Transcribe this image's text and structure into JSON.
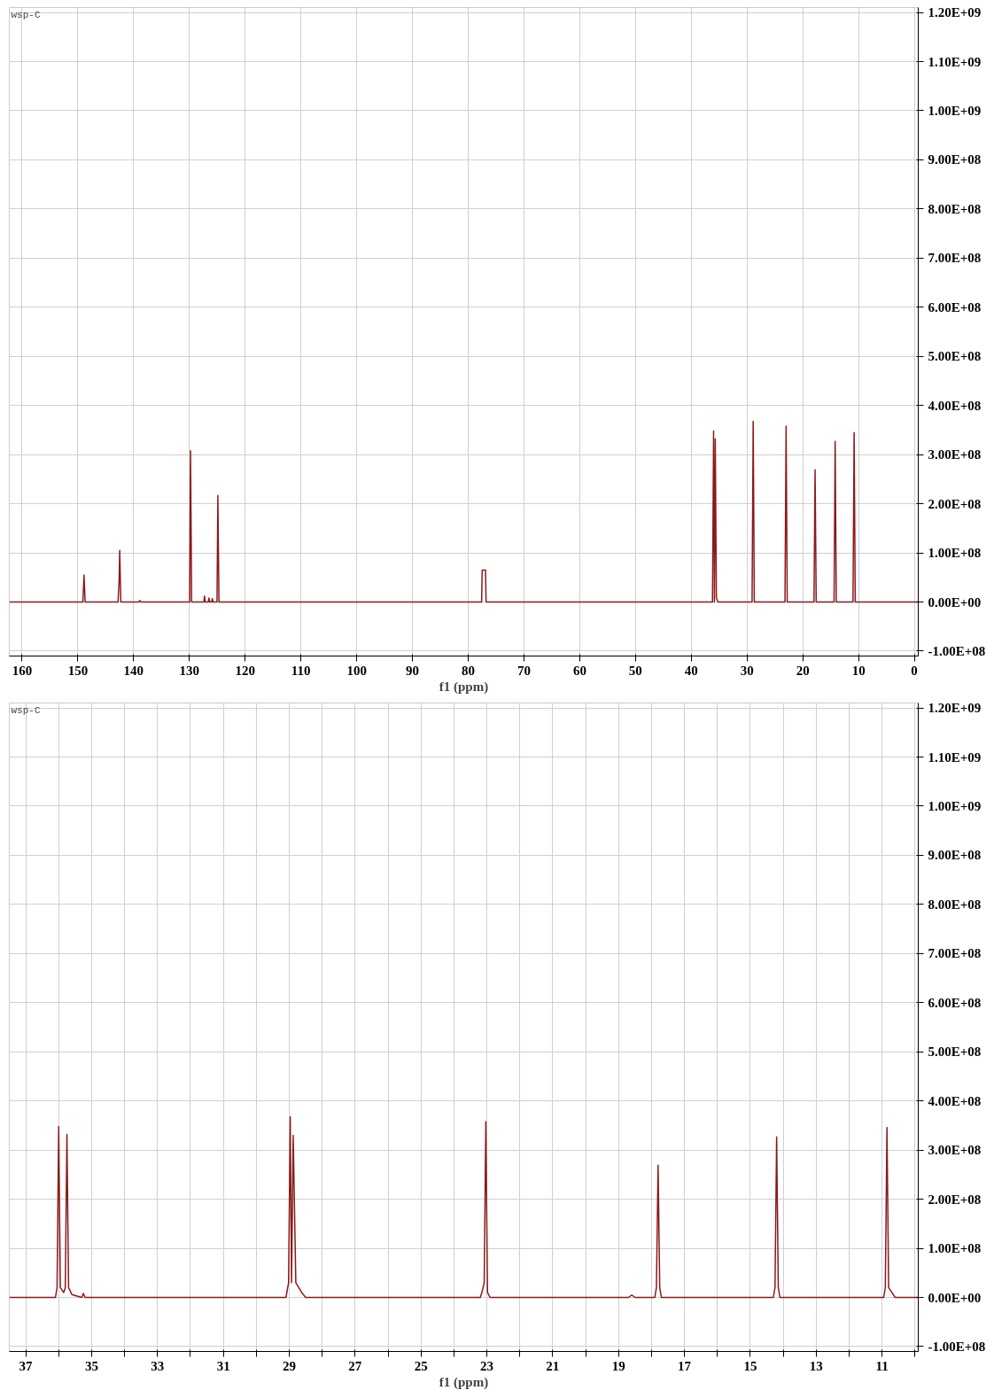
{
  "chart_data": [
    {
      "type": "line",
      "xlabel": "f1 (ppm)",
      "annotations": [
        "wsp-C"
      ],
      "grid": true,
      "color": "#8b1a1a",
      "xlim": [
        162.3,
        -0.7
      ],
      "ylim": [
        -110000000,
        1210000000
      ],
      "xticks": [
        160,
        {
          "value": 150,
          "label": "150"
        },
        140,
        130,
        120,
        110,
        100,
        90,
        80,
        70,
        60,
        50,
        40,
        30,
        20,
        10,
        0
      ],
      "yticks": [
        {
          "value": -100000000,
          "label": "-1.00E+08"
        },
        {
          "value": 0,
          "label": "0.00E+00"
        },
        {
          "value": 100000000,
          "label": "1.00E+08"
        },
        {
          "value": 200000000,
          "label": "2.00E+08"
        },
        {
          "value": 300000000,
          "label": "3.00E+08"
        },
        {
          "value": 400000000,
          "label": "4.00E+08"
        },
        {
          "value": 500000000,
          "label": "5.00E+08"
        },
        {
          "value": 600000000,
          "label": "6.00E+08"
        },
        {
          "value": 700000000,
          "label": "7.00E+08"
        },
        {
          "value": 800000000,
          "label": "8.00E+08"
        },
        {
          "value": 900000000,
          "label": "9.00E+08"
        },
        {
          "value": 1000000000,
          "label": "1.00E+09"
        },
        {
          "value": 1100000000,
          "label": "1.10E+09"
        },
        {
          "value": 1200000000,
          "label": "1.20E+09"
        }
      ],
      "x": [
        162.3,
        149.1,
        148.9,
        148.7,
        142.8,
        142.6,
        142.5,
        142.3,
        139.1,
        138.9,
        138.7,
        129.95,
        129.8,
        129.6,
        127.4,
        127.3,
        127.15,
        126.6,
        126.5,
        126.35,
        126.0,
        125.9,
        125.75,
        125.05,
        124.9,
        124.7,
        77.6,
        77.5,
        77.2,
        76.9,
        76.8,
        36.2,
        36.0,
        35.85,
        35.7,
        35.5,
        35.2,
        29.1,
        28.9,
        28.7,
        23.2,
        23.0,
        22.8,
        18.0,
        17.8,
        17.6,
        14.4,
        14.2,
        14.0,
        11.0,
        10.8,
        10.6,
        -0.7
      ],
      "values": [
        0,
        0,
        55000000,
        0,
        0,
        45000000,
        105000000,
        0,
        0,
        3000000,
        0,
        0,
        308000000,
        0,
        0,
        12000000,
        0,
        0,
        8000000,
        0,
        0,
        7000000,
        0,
        0,
        217000000,
        0,
        0,
        65000000,
        65000000,
        65000000,
        0,
        0,
        348000000,
        0,
        332000000,
        8000000,
        0,
        0,
        368000000,
        0,
        0,
        358000000,
        0,
        0,
        269000000,
        0,
        0,
        327000000,
        0,
        0,
        345000000,
        0,
        0
      ]
    },
    {
      "type": "line",
      "xlabel": "f1 (ppm)",
      "annotations": [
        "wsp-C"
      ],
      "grid": true,
      "color": "#8b1a1a",
      "xlim": [
        37.5,
        9.9
      ],
      "ylim": [
        -110000000,
        1210000000
      ],
      "xticks": [
        37,
        {
          "value": 36,
          "label": null
        },
        35,
        {
          "value": 34,
          "label": null
        },
        33,
        {
          "value": 32,
          "label": null
        },
        31,
        {
          "value": 30,
          "label": null
        },
        29,
        {
          "value": 28,
          "label": null
        },
        27,
        {
          "value": 26,
          "label": null
        },
        25,
        {
          "value": 24,
          "label": null
        },
        23,
        {
          "value": 22,
          "label": null
        },
        21,
        {
          "value": 20,
          "label": null
        },
        19,
        {
          "value": 18,
          "label": null
        },
        17,
        {
          "value": 16,
          "label": null
        },
        15,
        {
          "value": 14,
          "label": null
        },
        13,
        {
          "value": 12,
          "label": null
        },
        11,
        {
          "value": 10,
          "label": null
        }
      ],
      "yticks": [
        {
          "value": -100000000,
          "label": "-1.00E+08"
        },
        {
          "value": 0,
          "label": "0.00E+00"
        },
        {
          "value": 100000000,
          "label": "1.00E+08"
        },
        {
          "value": 200000000,
          "label": "2.00E+08"
        },
        {
          "value": 300000000,
          "label": "3.00E+08"
        },
        {
          "value": 400000000,
          "label": "4.00E+08"
        },
        {
          "value": 500000000,
          "label": "5.00E+08"
        },
        {
          "value": 600000000,
          "label": "6.00E+08"
        },
        {
          "value": 700000000,
          "label": "7.00E+08"
        },
        {
          "value": 800000000,
          "label": "8.00E+08"
        },
        {
          "value": 900000000,
          "label": "9.00E+08"
        },
        {
          "value": 1000000000,
          "label": "1.00E+09"
        },
        {
          "value": 1100000000,
          "label": "1.10E+09"
        },
        {
          "value": 1200000000,
          "label": "1.20E+09"
        }
      ],
      "x": [
        37.5,
        36.1,
        36.05,
        36.0,
        35.95,
        35.85,
        35.8,
        35.75,
        35.7,
        35.6,
        35.3,
        35.25,
        35.2,
        29.1,
        29.02,
        28.97,
        28.93,
        28.88,
        28.8,
        28.6,
        28.5,
        23.2,
        23.15,
        23.08,
        23.03,
        22.98,
        22.9,
        18.7,
        18.6,
        18.5,
        17.9,
        17.85,
        17.8,
        17.75,
        17.7,
        14.3,
        14.25,
        14.2,
        14.15,
        14.1,
        10.95,
        10.9,
        10.85,
        10.8,
        10.7,
        10.6,
        9.9
      ],
      "values": [
        0,
        0,
        20000000,
        348000000,
        20000000,
        10000000,
        20000000,
        332000000,
        20000000,
        6000000,
        0,
        8000000,
        0,
        0,
        30000000,
        368000000,
        30000000,
        330000000,
        30000000,
        8000000,
        0,
        0,
        10000000,
        30000000,
        358000000,
        10000000,
        0,
        0,
        5000000,
        0,
        0,
        20000000,
        269000000,
        20000000,
        0,
        0,
        20000000,
        327000000,
        20000000,
        0,
        0,
        20000000,
        346000000,
        20000000,
        10000000,
        0,
        0
      ]
    }
  ]
}
